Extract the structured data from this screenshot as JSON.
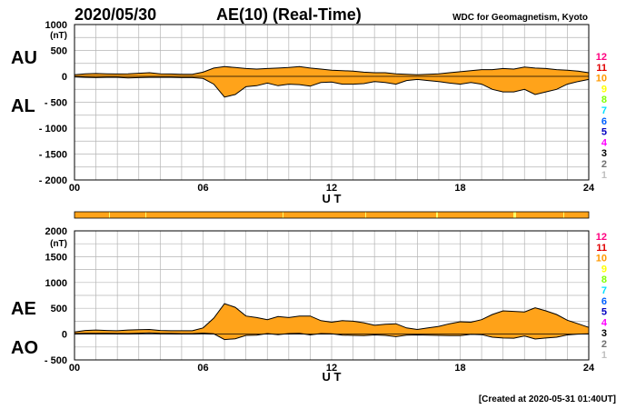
{
  "header": {
    "date": "2020/05/30",
    "title": "AE(10) (Real-Time)",
    "organization": "WDC for Geomagnetism, Kyoto"
  },
  "footer": {
    "created": "[Created at 2020-05-31 01:40UT]"
  },
  "station_count_labels": [
    "12",
    "11",
    "10",
    "9",
    "8",
    "7",
    "6",
    "5",
    "4",
    "3",
    "2",
    "1"
  ],
  "station_count_colors": [
    "#ff0080",
    "#e00000",
    "#ff9900",
    "#ffff00",
    "#80ff00",
    "#00e0ff",
    "#0060ff",
    "#0000c0",
    "#ff00ff",
    "#000000",
    "#707070",
    "#c0c0c0"
  ],
  "colors": {
    "fill": "#ffa31a",
    "outline": "#000000",
    "highlight": "#ffff66",
    "grid": "#b4b4b4"
  },
  "chart_data": [
    {
      "type": "area",
      "label_top": "AU",
      "label_bottom": "AL",
      "unit": "(nT)",
      "xlabel": "U T",
      "xlim": [
        0,
        24
      ],
      "ylim": [
        -2000,
        1000
      ],
      "x_tick_labels": [
        "00",
        "06",
        "12",
        "18",
        "24"
      ],
      "y_tick_labels": [
        "1000",
        "500",
        "0",
        "- 500",
        "- 1000",
        "- 1500",
        "- 2000"
      ],
      "grid": true,
      "hours": [
        0,
        0.5,
        1,
        1.5,
        2,
        2.5,
        3,
        3.5,
        4,
        4.5,
        5,
        5.5,
        6,
        6.5,
        7,
        7.5,
        8,
        8.5,
        9,
        9.5,
        10,
        10.5,
        11,
        11.5,
        12,
        12.5,
        13,
        13.5,
        14,
        14.5,
        15,
        15.5,
        16,
        16.5,
        17,
        17.5,
        18,
        18.5,
        19,
        19.5,
        20,
        20.5,
        21,
        21.5,
        22,
        22.5,
        23,
        23.5,
        24
      ],
      "series": [
        {
          "name": "AU",
          "values": [
            30,
            50,
            55,
            50,
            45,
            50,
            60,
            70,
            50,
            45,
            40,
            40,
            80,
            160,
            190,
            170,
            150,
            140,
            150,
            160,
            170,
            190,
            160,
            140,
            120,
            110,
            100,
            80,
            70,
            70,
            50,
            40,
            30,
            40,
            50,
            70,
            90,
            110,
            130,
            130,
            150,
            140,
            180,
            160,
            150,
            130,
            120,
            100,
            70
          ]
        },
        {
          "name": "AL",
          "values": [
            -10,
            -20,
            -25,
            -20,
            -20,
            -30,
            -25,
            -20,
            -20,
            -20,
            -25,
            -25,
            -40,
            -150,
            -400,
            -350,
            -200,
            -180,
            -130,
            -180,
            -150,
            -160,
            -190,
            -120,
            -110,
            -150,
            -150,
            -140,
            -100,
            -120,
            -150,
            -80,
            -60,
            -80,
            -100,
            -130,
            -150,
            -120,
            -150,
            -250,
            -300,
            -300,
            -250,
            -350,
            -300,
            -250,
            -150,
            -100,
            -60
          ]
        }
      ]
    },
    {
      "type": "area",
      "label_top": "AE",
      "label_bottom": "AO",
      "unit": "(nT)",
      "xlabel": "U T",
      "xlim": [
        0,
        24
      ],
      "ylim": [
        -500,
        2000
      ],
      "x_tick_labels": [
        "00",
        "06",
        "12",
        "18",
        "24"
      ],
      "y_tick_labels": [
        "2000",
        "1500",
        "1000",
        "500",
        "0",
        "- 500"
      ],
      "grid": true,
      "hours": [
        0,
        0.5,
        1,
        1.5,
        2,
        2.5,
        3,
        3.5,
        4,
        4.5,
        5,
        5.5,
        6,
        6.5,
        7,
        7.5,
        8,
        8.5,
        9,
        9.5,
        10,
        10.5,
        11,
        11.5,
        12,
        12.5,
        13,
        13.5,
        14,
        14.5,
        15,
        15.5,
        16,
        16.5,
        17,
        17.5,
        18,
        18.5,
        19,
        19.5,
        20,
        20.5,
        21,
        21.5,
        22,
        22.5,
        23,
        23.5,
        24
      ],
      "series": [
        {
          "name": "AE",
          "values": [
            40,
            70,
            80,
            70,
            65,
            80,
            85,
            90,
            70,
            65,
            65,
            65,
            120,
            310,
            590,
            520,
            350,
            320,
            280,
            340,
            320,
            350,
            350,
            260,
            230,
            260,
            250,
            220,
            170,
            190,
            200,
            120,
            90,
            120,
            150,
            200,
            240,
            230,
            280,
            380,
            450,
            440,
            430,
            510,
            450,
            380,
            270,
            200,
            130
          ]
        },
        {
          "name": "AO",
          "values": [
            10,
            15,
            15,
            15,
            12,
            10,
            18,
            25,
            15,
            12,
            8,
            8,
            20,
            5,
            -105,
            -90,
            -25,
            -20,
            10,
            -10,
            10,
            15,
            -15,
            10,
            5,
            -20,
            -25,
            -30,
            -15,
            -25,
            -50,
            -20,
            -15,
            -20,
            -25,
            -30,
            -30,
            -5,
            -10,
            -60,
            -75,
            -80,
            -35,
            -95,
            -75,
            -60,
            -15,
            0,
            5
          ]
        }
      ]
    }
  ]
}
